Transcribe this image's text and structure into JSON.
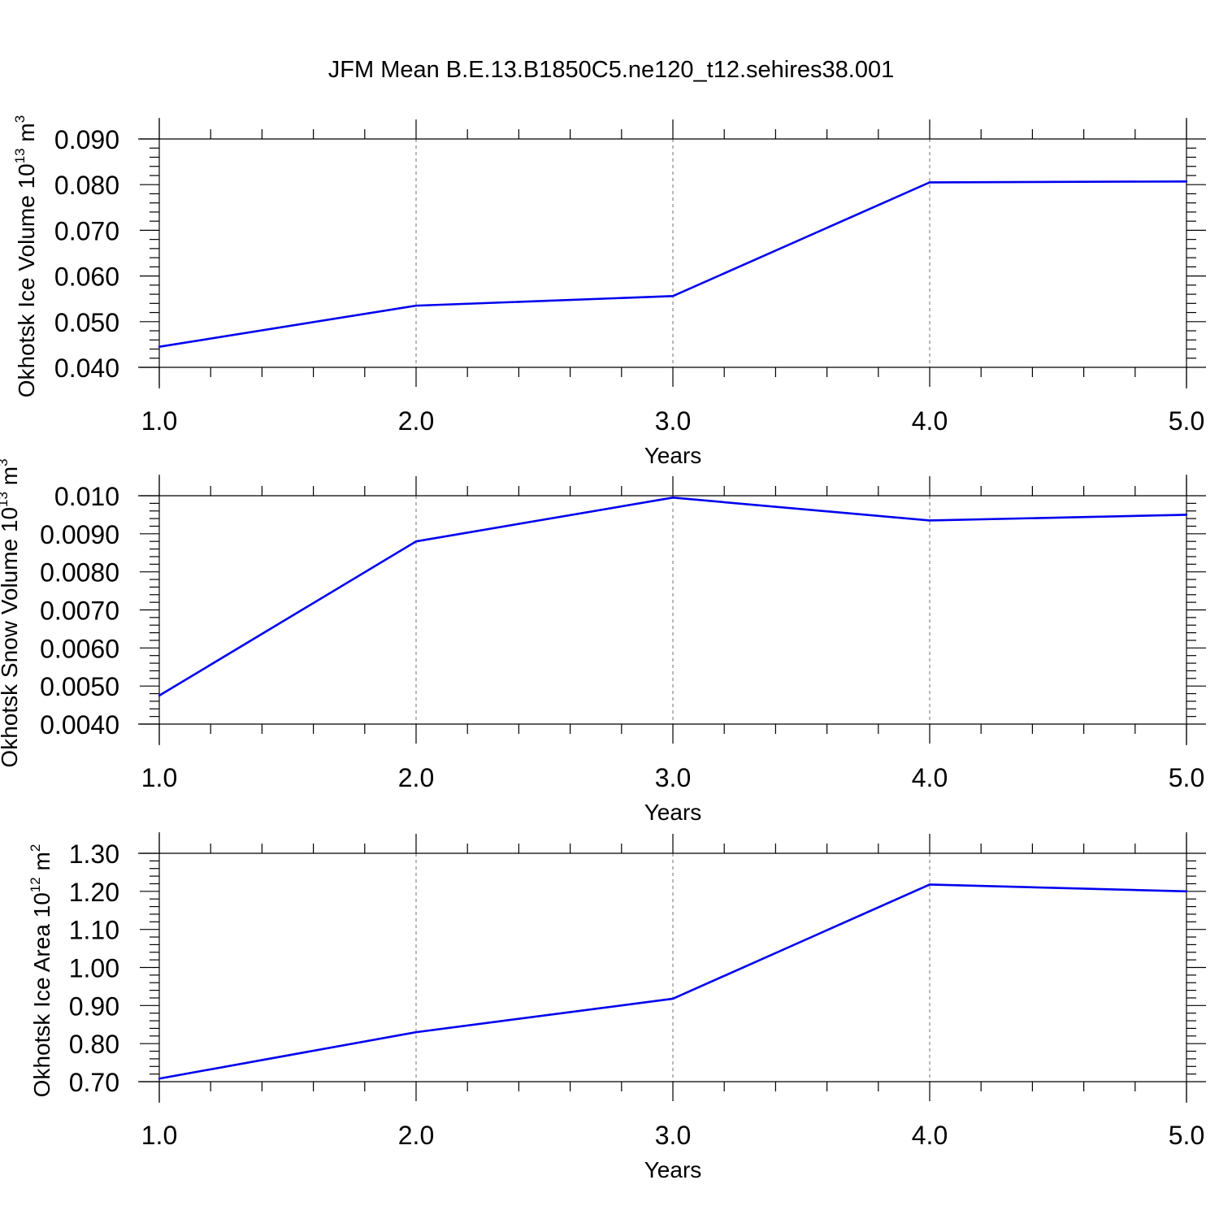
{
  "title": "JFM Mean B.E.13.B1850C5.ne120_t12.sehires38.001",
  "colors": {
    "line": "#0000ee",
    "axis": "#000000",
    "grid": "#888888",
    "background": "#ffffff"
  },
  "chart_data": [
    {
      "type": "line",
      "title": "JFM Mean B.E.13.B1850C5.ne120_t12.sehires38.001",
      "xlabel": "Years",
      "ylabel_main": "Okhotsk Ice Volume 10",
      "ylabel_exp": "13",
      "ylabel_unit": " m",
      "ylabel_unit_exp": "3",
      "xlim": [
        1.0,
        5.0
      ],
      "ylim": [
        0.04,
        0.09
      ],
      "x_ticks": [
        1.0,
        2.0,
        3.0,
        4.0,
        5.0
      ],
      "x_tick_labels": [
        "1.0",
        "2.0",
        "3.0",
        "4.0",
        "5.0"
      ],
      "y_ticks": [
        0.04,
        0.05,
        0.06,
        0.07,
        0.08,
        0.09
      ],
      "y_tick_labels": [
        "0.040",
        "0.050",
        "0.060",
        "0.070",
        "0.080",
        "0.090"
      ],
      "grid": "vertical dashed",
      "series": [
        {
          "name": "Okhotsk Ice Volume",
          "x": [
            1,
            2,
            3,
            4,
            5
          ],
          "values": [
            0.0445,
            0.0535,
            0.0556,
            0.0805,
            0.0807
          ]
        }
      ]
    },
    {
      "type": "line",
      "xlabel": "Years",
      "ylabel_main": "Okhotsk Snow Volume 10",
      "ylabel_exp": "13",
      "ylabel_unit": " m",
      "ylabel_unit_exp": "3",
      "xlim": [
        1.0,
        5.0
      ],
      "ylim": [
        0.004,
        0.01
      ],
      "x_ticks": [
        1.0,
        2.0,
        3.0,
        4.0,
        5.0
      ],
      "x_tick_labels": [
        "1.0",
        "2.0",
        "3.0",
        "4.0",
        "5.0"
      ],
      "y_ticks": [
        0.004,
        0.005,
        0.006,
        0.007,
        0.008,
        0.009,
        0.01
      ],
      "y_tick_labels": [
        "0.0040",
        "0.0050",
        "0.0060",
        "0.0070",
        "0.0080",
        "0.0090",
        "0.010"
      ],
      "grid": "vertical dashed",
      "series": [
        {
          "name": "Okhotsk Snow Volume",
          "x": [
            1,
            2,
            3,
            4,
            5
          ],
          "values": [
            0.00475,
            0.0088,
            0.00995,
            0.00935,
            0.0095
          ]
        }
      ]
    },
    {
      "type": "line",
      "xlabel": "Years",
      "ylabel_main": "Okhotsk Ice Area 10",
      "ylabel_exp": "12",
      "ylabel_unit": " m",
      "ylabel_unit_exp": "2",
      "xlim": [
        1.0,
        5.0
      ],
      "ylim": [
        0.7,
        1.3
      ],
      "x_ticks": [
        1.0,
        2.0,
        3.0,
        4.0,
        5.0
      ],
      "x_tick_labels": [
        "1.0",
        "2.0",
        "3.0",
        "4.0",
        "5.0"
      ],
      "y_ticks": [
        0.7,
        0.8,
        0.9,
        1.0,
        1.1,
        1.2,
        1.3
      ],
      "y_tick_labels": [
        "0.70",
        "0.80",
        "0.90",
        "1.00",
        "1.10",
        "1.20",
        "1.30"
      ],
      "grid": "vertical dashed",
      "series": [
        {
          "name": "Okhotsk Ice Area",
          "x": [
            1,
            2,
            3,
            4,
            5
          ],
          "values": [
            0.708,
            0.83,
            0.918,
            1.218,
            1.2
          ]
        }
      ]
    }
  ]
}
